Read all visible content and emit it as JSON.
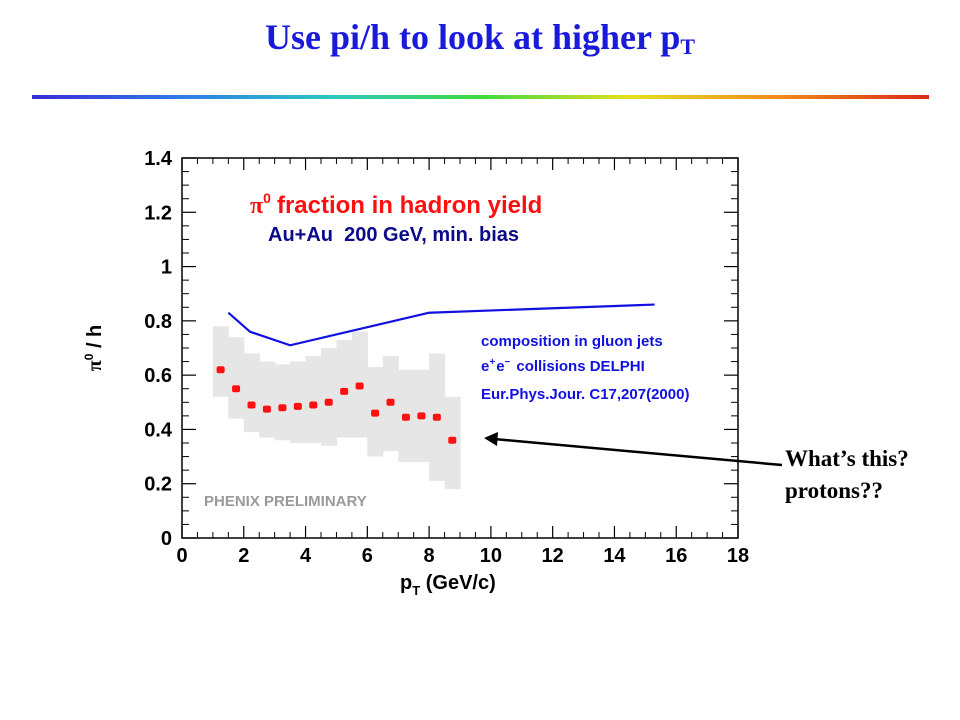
{
  "slide": {
    "title_main": "Use pi/h to look at higher p",
    "title_sub": "T"
  },
  "callout": {
    "line1": "What’s this?",
    "line2": "protons??"
  },
  "chart_data": {
    "type": "scatter",
    "title_symbol": "π",
    "title_sup": "0",
    "title_text": "fraction in hadron yield",
    "subtitle": "Au+Au  200 GeV, min. bias",
    "xlabel_main": "p",
    "xlabel_sub": "T",
    "xlabel_rest": " (GeV/c)",
    "ylabel_symbol": "π",
    "ylabel_sup": "0",
    "ylabel_rest": " / h",
    "xlim": [
      0,
      18
    ],
    "ylim": [
      0,
      1.4
    ],
    "x_ticks": [
      0,
      2,
      4,
      6,
      8,
      10,
      12,
      14,
      16,
      18
    ],
    "y_ticks": [
      {
        "v": 0,
        "label": "0"
      },
      {
        "v": 0.2,
        "label": "0.2"
      },
      {
        "v": 0.4,
        "label": "0.4"
      },
      {
        "v": 0.6,
        "label": "0.6"
      },
      {
        "v": 0.8,
        "label": "0.8"
      },
      {
        "v": 1.0,
        "label": "1"
      },
      {
        "v": 1.2,
        "label": "1.2"
      },
      {
        "v": 1.4,
        "label": "1.4"
      }
    ],
    "watermark": "PHENIX PRELIMINARY",
    "legend_lines": [
      "composition in gluon jets",
      "collisions DELPHI",
      "Eur.Phys.Jour. C17,207(2000)"
    ],
    "legend_ee": {
      "e1": "e",
      "p": "+",
      "e2": "e",
      "m": "−"
    },
    "colors": {
      "title": "#ff1010",
      "subtitle": "#0b0b8a",
      "legend": "#1010e0",
      "points": "#ff1010",
      "line": "#1010e0",
      "band": "#e6e6e6",
      "watermark": "#9a9a9a",
      "slide_title": "#1a1adb"
    },
    "series": [
      {
        "type": "scatter_with_systematic_band",
        "x": [
          1.25,
          1.75,
          2.25,
          2.75,
          3.25,
          3.75,
          4.25,
          4.75,
          5.25,
          5.75,
          6.25,
          6.75,
          7.25,
          7.75,
          8.25,
          8.75
        ],
        "y": [
          0.62,
          0.55,
          0.49,
          0.475,
          0.48,
          0.485,
          0.49,
          0.5,
          0.54,
          0.56,
          0.46,
          0.5,
          0.445,
          0.45,
          0.445,
          0.36
        ],
        "band_low": [
          0.52,
          0.44,
          0.39,
          0.37,
          0.36,
          0.35,
          0.35,
          0.34,
          0.37,
          0.37,
          0.3,
          0.32,
          0.28,
          0.28,
          0.21,
          0.18
        ],
        "band_high": [
          0.78,
          0.74,
          0.68,
          0.65,
          0.64,
          0.65,
          0.67,
          0.7,
          0.73,
          0.76,
          0.63,
          0.67,
          0.62,
          0.62,
          0.68,
          0.52
        ]
      },
      {
        "type": "line",
        "x": [
          1.5,
          2.2,
          3.5,
          8.0,
          15.3
        ],
        "y": [
          0.83,
          0.76,
          0.71,
          0.83,
          0.86
        ]
      }
    ]
  }
}
